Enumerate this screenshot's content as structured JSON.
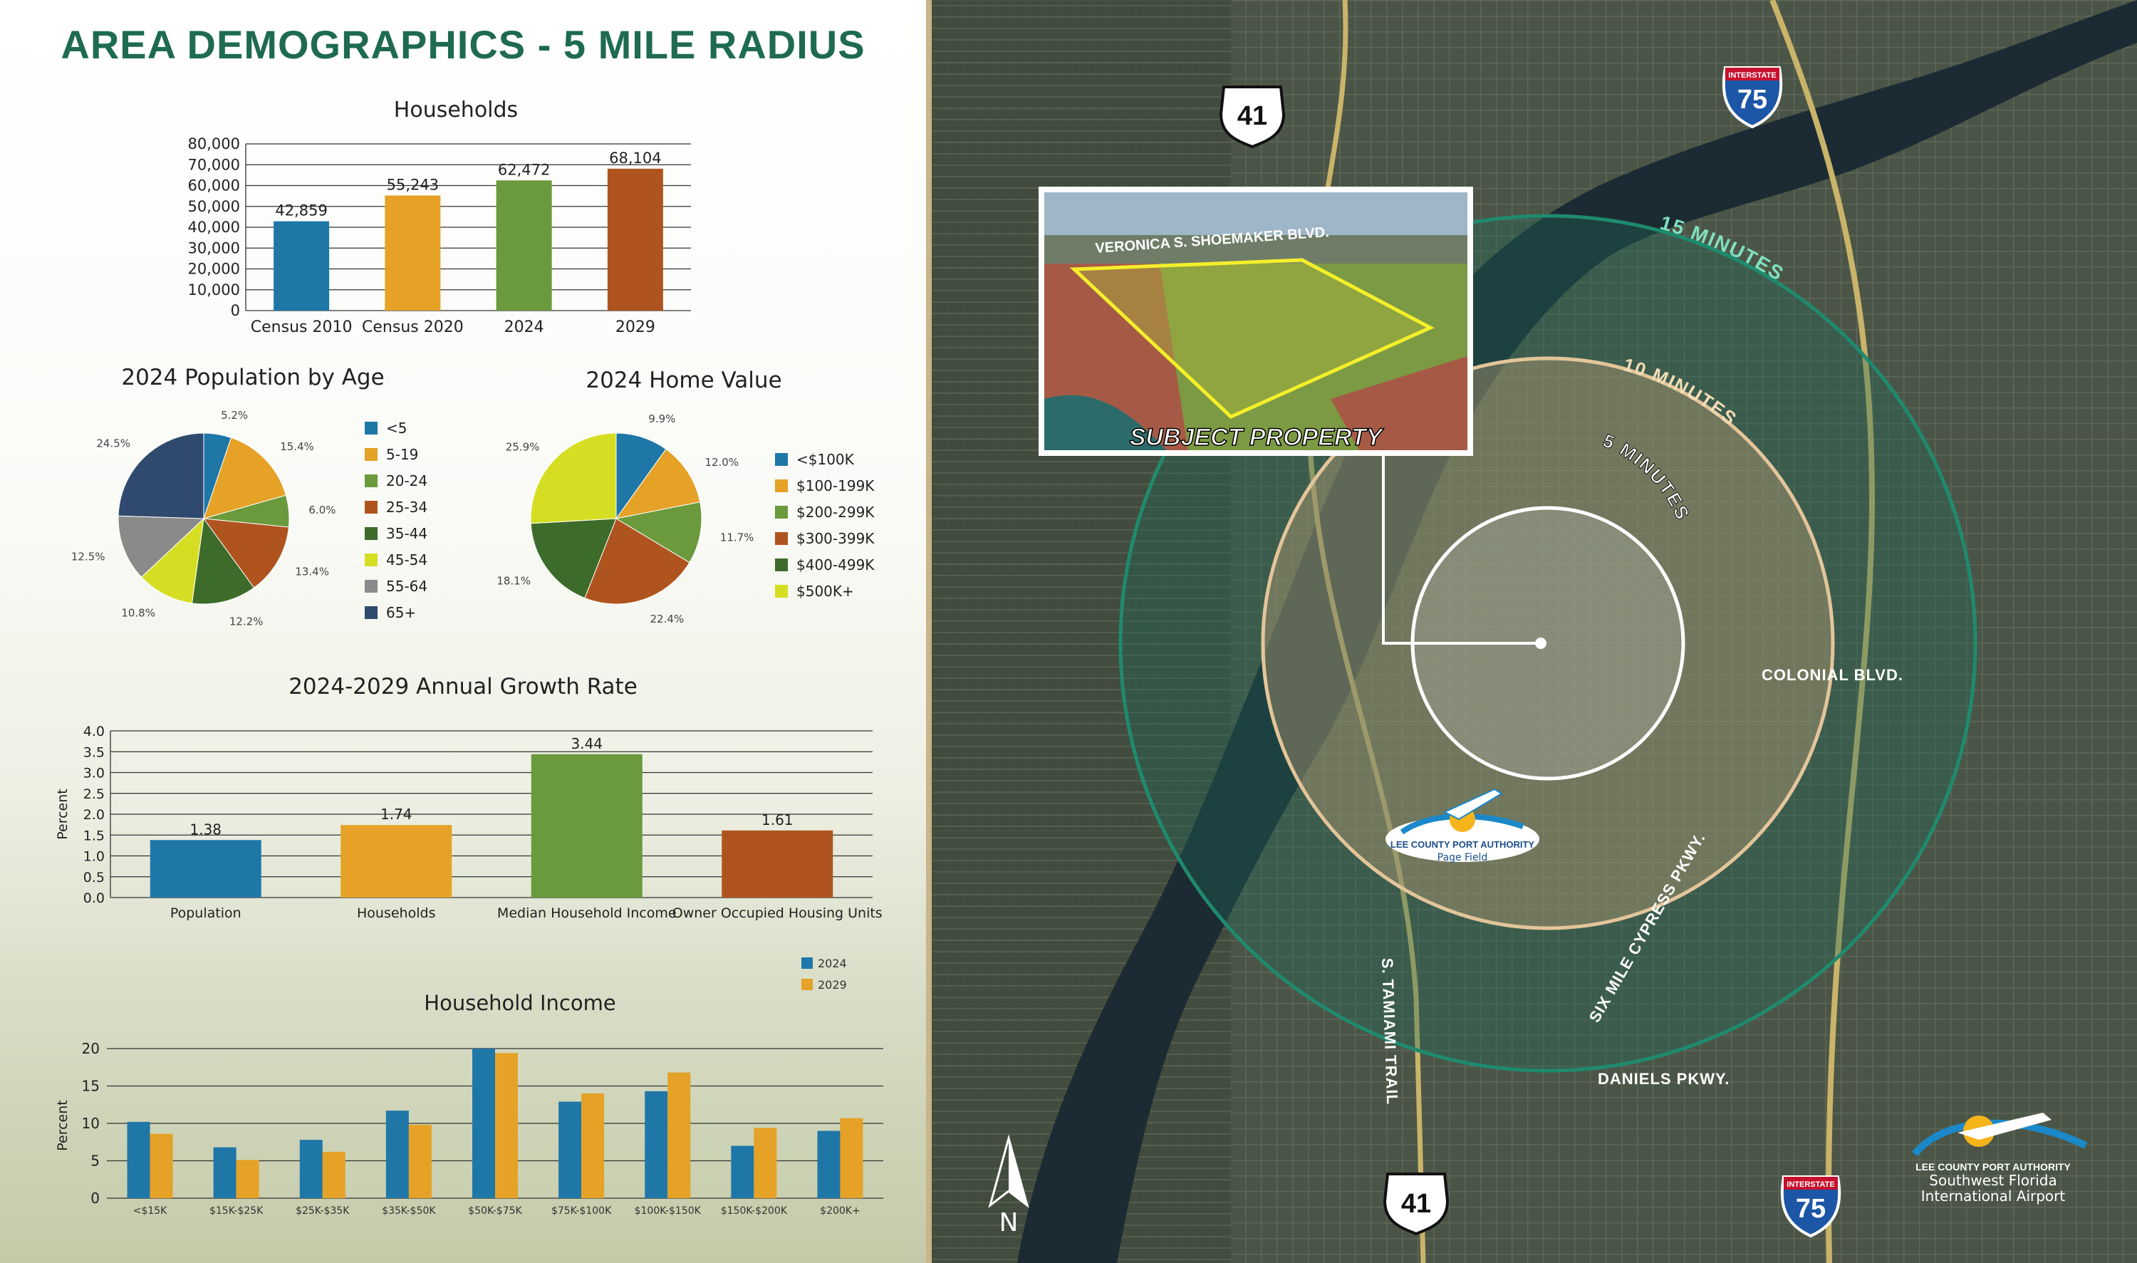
{
  "page_title": "AREA DEMOGRAPHICS - 5 MILE RADIUS",
  "chart_data": [
    {
      "id": "households",
      "type": "bar",
      "title": "Households",
      "categories": [
        "Census 2010",
        "Census 2020",
        "2024",
        "2029"
      ],
      "values": [
        42859,
        55243,
        62472,
        68104
      ],
      "value_labels": [
        "42,859",
        "55,243",
        "62,472",
        "68,104"
      ],
      "colors": [
        "#1f77a8",
        "#e5a226",
        "#6a9a3b",
        "#b0541f"
      ],
      "yticks": [
        "0",
        "10,000",
        "20,000",
        "30,000",
        "40,000",
        "50,000",
        "60,000",
        "70,000",
        "80,000"
      ],
      "ylim": [
        0,
        80000
      ],
      "grid": true
    },
    {
      "id": "population_by_age",
      "type": "pie",
      "title": "2024 Population by Age",
      "slices": [
        {
          "label": "<5",
          "value": 5.2,
          "pct": "5.2%",
          "color": "#1f77a8"
        },
        {
          "label": "5-19",
          "value": 15.4,
          "pct": "15.4%",
          "color": "#e5a226"
        },
        {
          "label": "20-24",
          "value": 6.0,
          "pct": "6.0%",
          "color": "#6a9a3b"
        },
        {
          "label": "25-34",
          "value": 13.4,
          "pct": "13.4%",
          "color": "#b0541f"
        },
        {
          "label": "35-44",
          "value": 12.2,
          "pct": "12.2%",
          "color": "#3d6b2a"
        },
        {
          "label": "45-54",
          "value": 10.8,
          "pct": "10.8%",
          "color": "#d6de23"
        },
        {
          "label": "55-64",
          "value": 12.5,
          "pct": "12.5%",
          "color": "#8a8a8a"
        },
        {
          "label": "65+",
          "value": 24.5,
          "pct": "24.5%",
          "color": "#2f4a6e"
        }
      ],
      "legend": "right"
    },
    {
      "id": "home_value",
      "type": "pie",
      "title": "2024 Home Value",
      "slices": [
        {
          "label": "<$100K",
          "value": 9.9,
          "pct": "9.9%",
          "color": "#1f77a8"
        },
        {
          "label": "$100-199K",
          "value": 12.0,
          "pct": "12.0%",
          "color": "#e5a226"
        },
        {
          "label": "$200-299K",
          "value": 11.7,
          "pct": "11.7%",
          "color": "#6a9a3b"
        },
        {
          "label": "$300-399K",
          "value": 22.4,
          "pct": "22.4%",
          "color": "#b0541f"
        },
        {
          "label": "$400-499K",
          "value": 18.1,
          "pct": "18.1%",
          "color": "#3d6b2a"
        },
        {
          "label": "$500K+",
          "value": 25.9,
          "pct": "25.9%",
          "color": "#d6de23"
        }
      ],
      "legend": "right"
    },
    {
      "id": "growth_rate",
      "type": "bar",
      "title": "2024-2029 Annual Growth Rate",
      "ylabel": "Percent",
      "categories": [
        "Population",
        "Households",
        "Median Household Income",
        "Owner Occupied Housing Units"
      ],
      "values": [
        1.38,
        1.74,
        3.44,
        1.61
      ],
      "value_labels": [
        "1.38",
        "1.74",
        "3.44",
        "1.61"
      ],
      "colors": [
        "#1f77a8",
        "#e5a226",
        "#6a9a3b",
        "#b0541f"
      ],
      "yticks": [
        "0.0",
        "0.5",
        "1.0",
        "1.5",
        "2.0",
        "2.5",
        "3.0",
        "3.5",
        "4.0"
      ],
      "ylim": [
        0,
        4
      ],
      "grid": true
    },
    {
      "id": "household_income",
      "type": "bar",
      "title": "Household Income",
      "ylabel": "Percent",
      "categories": [
        "<$15K",
        "$15K-$25K",
        "$25K-$35K",
        "$35K-$50K",
        "$50K-$75K",
        "$75K-$100K",
        "$100K-$150K",
        "$150K-$200K",
        "$200K+"
      ],
      "series": [
        {
          "name": "2024",
          "color": "#1f77a8",
          "values": [
            10.2,
            6.8,
            7.8,
            11.7,
            20.0,
            12.9,
            14.3,
            7.0,
            9.0
          ]
        },
        {
          "name": "2029",
          "color": "#e5a226",
          "values": [
            8.6,
            5.1,
            6.2,
            9.8,
            19.4,
            14.0,
            16.8,
            9.4,
            10.7
          ]
        }
      ],
      "yticks": [
        "0",
        "5",
        "10",
        "15",
        "20"
      ],
      "ylim": [
        0,
        20
      ],
      "legend": "top-right",
      "grid": true
    }
  ],
  "map": {
    "rings": [
      {
        "label": "15 MINUTES",
        "color": "#1f8a6e"
      },
      {
        "label": "10 MINUTES",
        "color": "#e3c59a"
      },
      {
        "label": "5 MINUTES",
        "color": "#ffffff"
      }
    ],
    "roads": {
      "us41_shield": "41",
      "i75_shield": "75",
      "interstate": "INTERSTATE",
      "veronica": "VERONICA S. SHOEMAKER BLVD.",
      "colonial": "COLONIAL BLVD.",
      "six_mile": "SIX MILE CYPRESS PKWY.",
      "tamiami": "S. TAMIAMI TRAIL",
      "daniels": "DANIELS PKWY."
    },
    "subject_property": "SUBJECT PROPERTY",
    "north": "N",
    "page_field": {
      "line1": "LEE COUNTY PORT AUTHORITY",
      "line2": "Page Field"
    },
    "airport": {
      "line1": "LEE COUNTY PORT AUTHORITY",
      "line2": "Southwest Florida",
      "line3": "International Airport"
    },
    "colors": {
      "water": "#1c2b33",
      "land": "#4a5446"
    }
  }
}
